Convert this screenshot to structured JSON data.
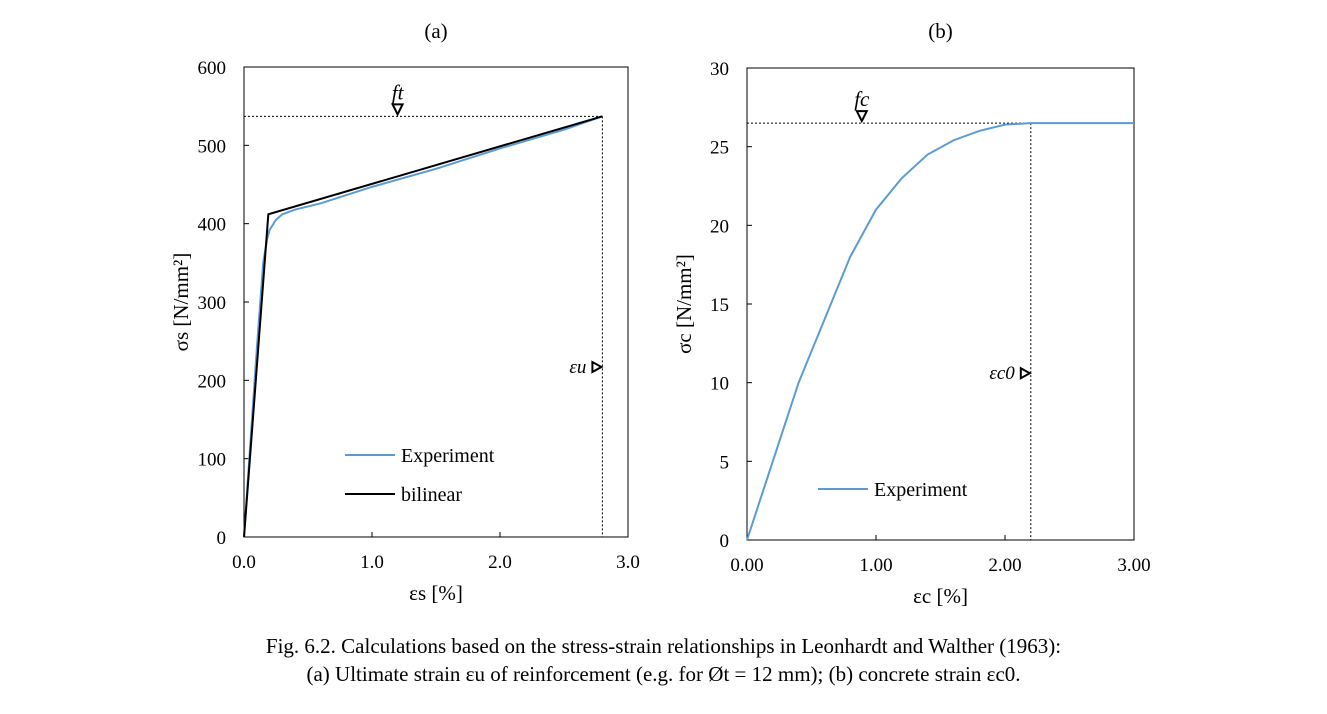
{
  "chart_data": [
    {
      "type": "line",
      "panel_label": "(a)",
      "xlabel": "εs [%]",
      "ylabel": "σs [N/mm²]",
      "xlim": [
        0,
        3.0
      ],
      "ylim": [
        0,
        600
      ],
      "xticks": [
        "0.0",
        "1.0",
        "2.0",
        "3.0"
      ],
      "yticks": [
        "0",
        "100",
        "200",
        "300",
        "400",
        "500",
        "600"
      ],
      "legend_position": "bottom-center",
      "series": [
        {
          "name": "Experiment",
          "color": "#5b9bd5",
          "x": [
            0,
            0.1,
            0.15,
            0.18,
            0.2,
            0.25,
            0.3,
            0.4,
            0.6,
            1.0,
            1.5,
            2.0,
            2.5,
            2.8
          ],
          "y": [
            0,
            240,
            350,
            380,
            392,
            405,
            412,
            418,
            426,
            447,
            470,
            496,
            520,
            537
          ]
        },
        {
          "name": "bilinear",
          "color": "#000000",
          "x": [
            0,
            0.19,
            2.8
          ],
          "y": [
            0,
            412,
            537
          ]
        }
      ],
      "annotations": [
        {
          "text": "ft",
          "value": 537,
          "marker_x": 1.2
        },
        {
          "text": "εu",
          "value": 2.8,
          "marker_y": 217
        }
      ]
    },
    {
      "type": "line",
      "panel_label": "(b)",
      "xlabel": "εc [%]",
      "ylabel": "σc [N/mm²]",
      "xlim": [
        0,
        3.0
      ],
      "ylim": [
        0,
        30
      ],
      "xticks": [
        "0.00",
        "1.00",
        "2.00",
        "3.00"
      ],
      "yticks": [
        "0",
        "5",
        "10",
        "15",
        "20",
        "25",
        "30"
      ],
      "legend_position": "bottom-center",
      "series": [
        {
          "name": "Experiment",
          "color": "#5b9bd5",
          "x": [
            0,
            0.4,
            0.8,
            1.0,
            1.2,
            1.4,
            1.6,
            1.8,
            2.0,
            2.2,
            3.0
          ],
          "y": [
            0,
            10,
            18,
            21,
            23,
            24.5,
            25.4,
            26,
            26.4,
            26.5,
            26.5
          ]
        }
      ],
      "annotations": [
        {
          "text": "fc",
          "value": 26.5,
          "marker_x": 0.89
        },
        {
          "text": "εc0",
          "value": 2.2,
          "marker_y": 10.6
        }
      ]
    }
  ],
  "caption": {
    "line1": "Fig. 6.2. Calculations based on the stress-strain relationships in Leonhardt and Walther (1963):",
    "line2": "(a) Ultimate strain εu of reinforcement  (e.g. for Øt = 12 mm); (b) concrete strain εc0."
  }
}
